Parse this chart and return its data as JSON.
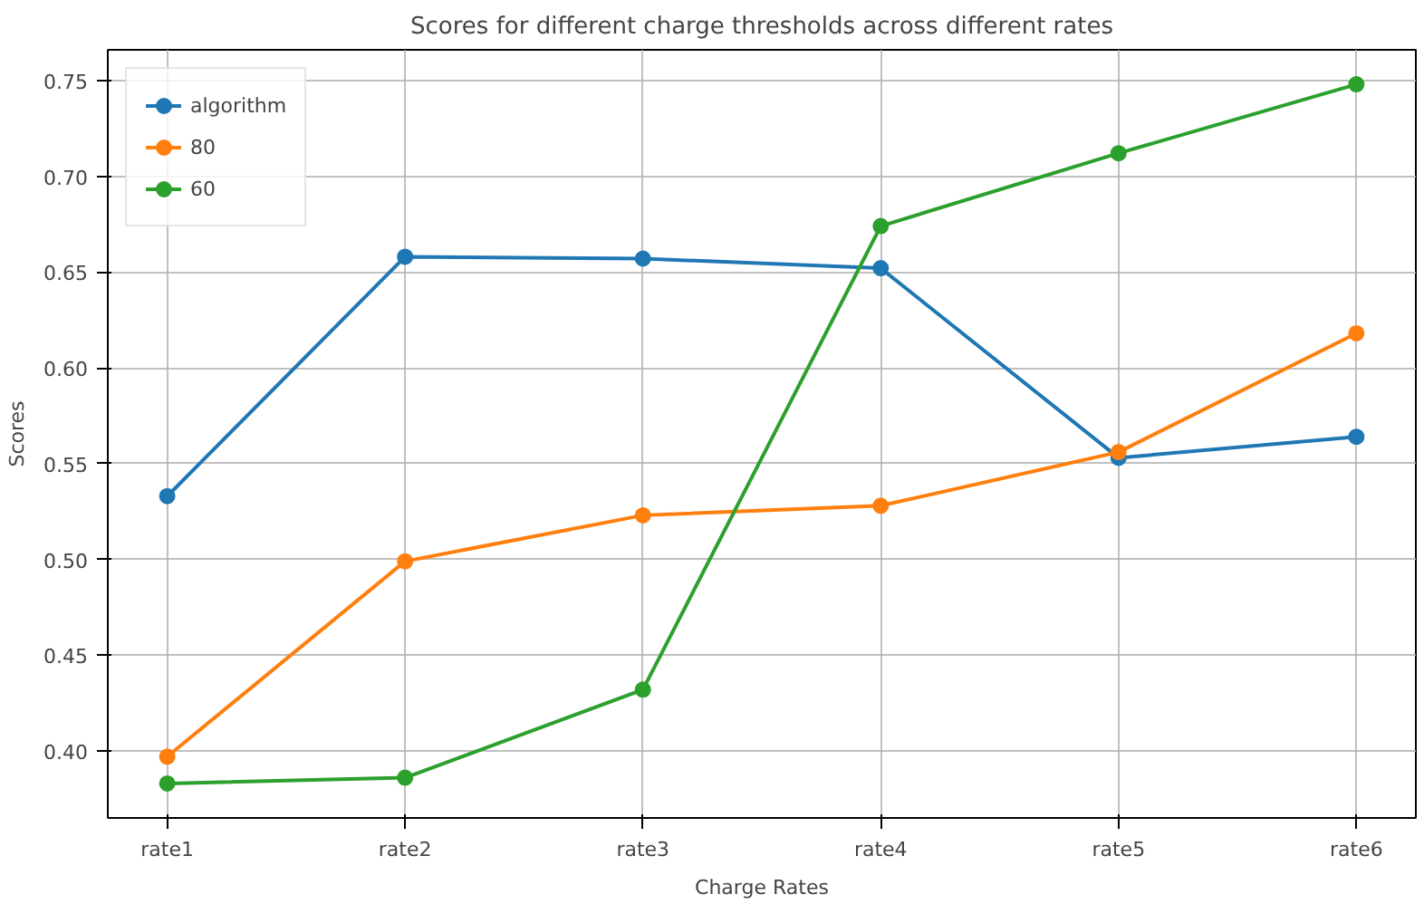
{
  "chart_data": {
    "type": "line",
    "title": "Scores for different charge thresholds across different rates",
    "xlabel": "Charge Rates",
    "ylabel": "Scores",
    "categories": [
      "rate1",
      "rate2",
      "rate3",
      "rate4",
      "rate5",
      "rate6"
    ],
    "series": [
      {
        "name": "algorithm",
        "color": "#1f77b4",
        "values": [
          0.533,
          0.658,
          0.657,
          0.652,
          0.553,
          0.564
        ]
      },
      {
        "name": "80",
        "color": "#ff7f0e",
        "values": [
          0.397,
          0.499,
          0.523,
          0.528,
          0.556,
          0.618
        ]
      },
      {
        "name": "60",
        "color": "#2ca02c",
        "values": [
          0.383,
          0.386,
          0.432,
          0.674,
          0.712,
          0.748
        ]
      }
    ],
    "ylim": [
      0.365,
      0.766
    ],
    "yticks": [
      {
        "value": 0.4,
        "label": "0.40"
      },
      {
        "value": 0.45,
        "label": "0.45"
      },
      {
        "value": 0.5,
        "label": "0.50"
      },
      {
        "value": 0.55,
        "label": "0.55"
      },
      {
        "value": 0.6,
        "label": "0.60"
      },
      {
        "value": 0.65,
        "label": "0.65"
      },
      {
        "value": 0.7,
        "label": "0.70"
      },
      {
        "value": 0.75,
        "label": "0.75"
      }
    ],
    "grid": true,
    "legend": "top left",
    "marker": "circle",
    "line_style": "solid"
  }
}
